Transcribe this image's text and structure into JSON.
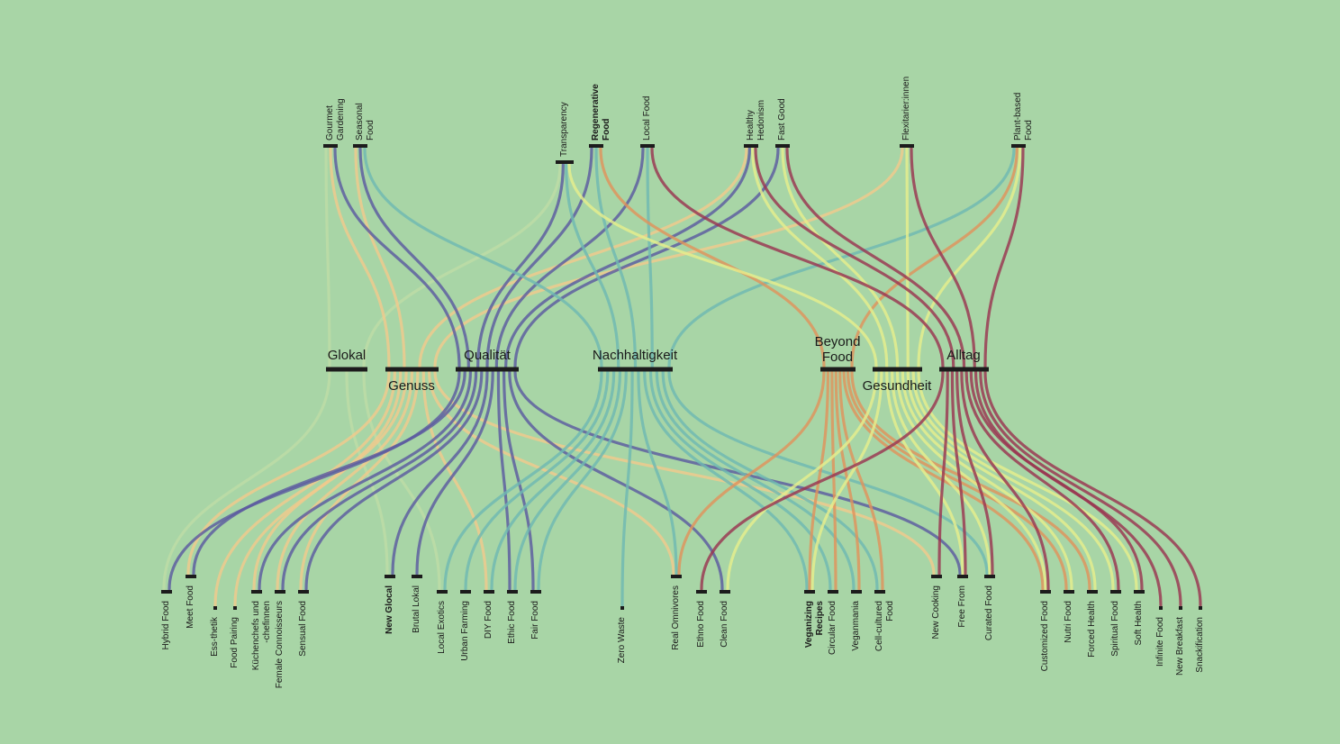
{
  "colors": {
    "background": "#a8d5a6",
    "purple": "#5b5aa0",
    "teal": "#6fb8b2",
    "yellow": "#e6ee8c",
    "orange": "#e0935c",
    "peach": "#f2c98c",
    "red": "#9a3550",
    "pale": "#c9e0a6",
    "node": "#1c1c1c"
  },
  "top_trends": [
    {
      "id": "gourmet",
      "label": "Gourmet\nGardening",
      "bold": false
    },
    {
      "id": "seasonal",
      "label": "Seasonal\nFood",
      "bold": false
    },
    {
      "id": "transparency",
      "label": "Transparency",
      "bold": false
    },
    {
      "id": "regenerative",
      "label": "Regenerative\nFood",
      "bold": true
    },
    {
      "id": "local",
      "label": "Local Food",
      "bold": false
    },
    {
      "id": "healthy",
      "label": "Healthy\nHedonism",
      "bold": false
    },
    {
      "id": "fastgood",
      "label": "Fast Good",
      "bold": false
    },
    {
      "id": "flexi",
      "label": "Flexitarier:innen",
      "bold": false
    },
    {
      "id": "plant",
      "label": "Plant-based\nFood",
      "bold": false
    }
  ],
  "categories": [
    {
      "id": "glokal",
      "label": "Glokal",
      "label_pos": "above"
    },
    {
      "id": "genuss",
      "label": "Genuss",
      "label_pos": "below"
    },
    {
      "id": "qualitaet",
      "label": "Qualität",
      "label_pos": "above"
    },
    {
      "id": "nachhaltigkeit",
      "label": "Nachhaltigkeit",
      "label_pos": "above"
    },
    {
      "id": "beyond",
      "label": "Beyond\nFood",
      "label_pos": "above"
    },
    {
      "id": "gesundheit",
      "label": "Gesundheit",
      "label_pos": "below"
    },
    {
      "id": "alltag",
      "label": "Alltag",
      "label_pos": "above"
    }
  ],
  "bottom_trends": [
    {
      "id": "hybrid",
      "label": "Hybrid Food",
      "bold": false
    },
    {
      "id": "meet",
      "label": "Meet Food",
      "bold": false
    },
    {
      "id": "essthetik",
      "label": "Ess-thetik",
      "bold": false
    },
    {
      "id": "pairing",
      "label": "Food Pairing",
      "bold": false
    },
    {
      "id": "kuechen",
      "label": "Küchenchefs und\n-chefinnen",
      "bold": false
    },
    {
      "id": "female",
      "label": "Female Connoisseurs",
      "bold": false
    },
    {
      "id": "sensual",
      "label": "Sensual Food",
      "bold": false
    },
    {
      "id": "newglocal",
      "label": "New Glocal",
      "bold": true
    },
    {
      "id": "brutal",
      "label": "Brutal Lokal",
      "bold": false
    },
    {
      "id": "exotics",
      "label": "Local Exotics",
      "bold": false
    },
    {
      "id": "urban",
      "label": "Urban Farming",
      "bold": false
    },
    {
      "id": "diy",
      "label": "DIY Food",
      "bold": false
    },
    {
      "id": "ethic",
      "label": "Ethic Food",
      "bold": false
    },
    {
      "id": "fair",
      "label": "Fair Food",
      "bold": false
    },
    {
      "id": "zerowaste",
      "label": "Zero Waste",
      "bold": false
    },
    {
      "id": "realomni",
      "label": "Real Omnivores",
      "bold": false
    },
    {
      "id": "ethno",
      "label": "Ethno Food",
      "bold": false
    },
    {
      "id": "clean",
      "label": "Clean Food",
      "bold": false
    },
    {
      "id": "veganizing",
      "label": "Veganizing\nRecipes",
      "bold": true
    },
    {
      "id": "circular",
      "label": "Circular Food",
      "bold": false
    },
    {
      "id": "vegan",
      "label": "Veganmania",
      "bold": false
    },
    {
      "id": "cellcult",
      "label": "Cell-cultured\nFood",
      "bold": false
    },
    {
      "id": "newcooking",
      "label": "New Cooking",
      "bold": false
    },
    {
      "id": "freefrom",
      "label": "Free From",
      "bold": false
    },
    {
      "id": "curated",
      "label": "Curated Food",
      "bold": false
    },
    {
      "id": "customized",
      "label": "Customized Food",
      "bold": false
    },
    {
      "id": "nutri",
      "label": "Nutri Food",
      "bold": false
    },
    {
      "id": "forced",
      "label": "Forced Health",
      "bold": false
    },
    {
      "id": "spiritual",
      "label": "Spiritual Food",
      "bold": false
    },
    {
      "id": "softhealth",
      "label": "Soft Health",
      "bold": false
    },
    {
      "id": "infinite",
      "label": "Infinite Food",
      "bold": false
    },
    {
      "id": "breakfast",
      "label": "New Breakfast",
      "bold": false
    },
    {
      "id": "snack",
      "label": "Snackification",
      "bold": false
    }
  ],
  "links_top": [
    {
      "from": "gourmet",
      "to": "qualitaet",
      "color": "purple"
    },
    {
      "from": "gourmet",
      "to": "genuss",
      "color": "peach"
    },
    {
      "from": "gourmet",
      "to": "glokal",
      "color": "pale"
    },
    {
      "from": "seasonal",
      "to": "nachhaltigkeit",
      "color": "teal"
    },
    {
      "from": "seasonal",
      "to": "genuss",
      "color": "peach"
    },
    {
      "from": "seasonal",
      "to": "qualitaet",
      "color": "purple"
    },
    {
      "from": "transparency",
      "to": "qualitaet",
      "color": "purple"
    },
    {
      "from": "transparency",
      "to": "nachhaltigkeit",
      "color": "teal"
    },
    {
      "from": "transparency",
      "to": "gesundheit",
      "color": "yellow"
    },
    {
      "from": "transparency",
      "to": "glokal",
      "color": "pale"
    },
    {
      "from": "regenerative",
      "to": "qualitaet",
      "color": "purple"
    },
    {
      "from": "regenerative",
      "to": "beyond",
      "color": "orange"
    },
    {
      "from": "regenerative",
      "to": "nachhaltigkeit",
      "color": "teal"
    },
    {
      "from": "local",
      "to": "qualitaet",
      "color": "purple"
    },
    {
      "from": "local",
      "to": "nachhaltigkeit",
      "color": "teal"
    },
    {
      "from": "local",
      "to": "alltag",
      "color": "red"
    },
    {
      "from": "healthy",
      "to": "genuss",
      "color": "peach"
    },
    {
      "from": "healthy",
      "to": "qualitaet",
      "color": "purple"
    },
    {
      "from": "healthy",
      "to": "gesundheit",
      "color": "yellow"
    },
    {
      "from": "healthy",
      "to": "alltag",
      "color": "red"
    },
    {
      "from": "fastgood",
      "to": "qualitaet",
      "color": "purple"
    },
    {
      "from": "fastgood",
      "to": "gesundheit",
      "color": "yellow"
    },
    {
      "from": "fastgood",
      "to": "alltag",
      "color": "red"
    },
    {
      "from": "flexi",
      "to": "genuss",
      "color": "peach"
    },
    {
      "from": "flexi",
      "to": "gesundheit",
      "color": "yellow"
    },
    {
      "from": "flexi",
      "to": "alltag",
      "color": "red"
    },
    {
      "from": "plant",
      "to": "nachhaltigkeit",
      "color": "teal"
    },
    {
      "from": "plant",
      "to": "beyond",
      "color": "orange"
    },
    {
      "from": "plant",
      "to": "gesundheit",
      "color": "yellow"
    },
    {
      "from": "plant",
      "to": "alltag",
      "color": "red"
    }
  ],
  "links_bottom": [
    {
      "from": "glokal",
      "to": "hybrid",
      "color": "pale"
    },
    {
      "from": "glokal",
      "to": "exotics",
      "color": "pale"
    },
    {
      "from": "glokal",
      "to": "newglocal",
      "color": "pale"
    },
    {
      "from": "genuss",
      "to": "essthetik",
      "color": "peach"
    },
    {
      "from": "genuss",
      "to": "pairing",
      "color": "peach"
    },
    {
      "from": "genuss",
      "to": "kuechen",
      "color": "peach"
    },
    {
      "from": "genuss",
      "to": "female",
      "color": "peach"
    },
    {
      "from": "genuss",
      "to": "sensual",
      "color": "peach"
    },
    {
      "from": "genuss",
      "to": "meet",
      "color": "peach"
    },
    {
      "from": "genuss",
      "to": "diy",
      "color": "peach"
    },
    {
      "from": "genuss",
      "to": "realomni",
      "color": "peach"
    },
    {
      "from": "genuss",
      "to": "newcooking",
      "color": "peach"
    },
    {
      "from": "qualitaet",
      "to": "hybrid",
      "color": "purple"
    },
    {
      "from": "qualitaet",
      "to": "meet",
      "color": "purple"
    },
    {
      "from": "qualitaet",
      "to": "kuechen",
      "color": "purple"
    },
    {
      "from": "qualitaet",
      "to": "female",
      "color": "purple"
    },
    {
      "from": "qualitaet",
      "to": "sensual",
      "color": "purple"
    },
    {
      "from": "qualitaet",
      "to": "newglocal",
      "color": "purple"
    },
    {
      "from": "qualitaet",
      "to": "brutal",
      "color": "purple"
    },
    {
      "from": "qualitaet",
      "to": "ethic",
      "color": "purple"
    },
    {
      "from": "qualitaet",
      "to": "fair",
      "color": "purple"
    },
    {
      "from": "qualitaet",
      "to": "clean",
      "color": "purple"
    },
    {
      "from": "qualitaet",
      "to": "freefrom",
      "color": "purple"
    },
    {
      "from": "nachhaltigkeit",
      "to": "exotics",
      "color": "teal"
    },
    {
      "from": "nachhaltigkeit",
      "to": "urban",
      "color": "teal"
    },
    {
      "from": "nachhaltigkeit",
      "to": "diy",
      "color": "teal"
    },
    {
      "from": "nachhaltigkeit",
      "to": "ethic",
      "color": "teal"
    },
    {
      "from": "nachhaltigkeit",
      "to": "fair",
      "color": "teal"
    },
    {
      "from": "nachhaltigkeit",
      "to": "zerowaste",
      "color": "teal"
    },
    {
      "from": "nachhaltigkeit",
      "to": "realomni",
      "color": "teal"
    },
    {
      "from": "nachhaltigkeit",
      "to": "veganizing",
      "color": "teal"
    },
    {
      "from": "nachhaltigkeit",
      "to": "circular",
      "color": "teal"
    },
    {
      "from": "nachhaltigkeit",
      "to": "vegan",
      "color": "teal"
    },
    {
      "from": "nachhaltigkeit",
      "to": "cellcult",
      "color": "teal"
    },
    {
      "from": "nachhaltigkeit",
      "to": "curated",
      "color": "teal"
    },
    {
      "from": "beyond",
      "to": "veganizing",
      "color": "orange"
    },
    {
      "from": "beyond",
      "to": "circular",
      "color": "orange"
    },
    {
      "from": "beyond",
      "to": "vegan",
      "color": "orange"
    },
    {
      "from": "beyond",
      "to": "cellcult",
      "color": "orange"
    },
    {
      "from": "beyond",
      "to": "realomni",
      "color": "orange"
    },
    {
      "from": "beyond",
      "to": "customized",
      "color": "orange"
    },
    {
      "from": "beyond",
      "to": "nutri",
      "color": "orange"
    },
    {
      "from": "beyond",
      "to": "forced",
      "color": "orange"
    },
    {
      "from": "gesundheit",
      "to": "clean",
      "color": "yellow"
    },
    {
      "from": "gesundheit",
      "to": "freefrom",
      "color": "yellow"
    },
    {
      "from": "gesundheit",
      "to": "customized",
      "color": "yellow"
    },
    {
      "from": "gesundheit",
      "to": "nutri",
      "color": "yellow"
    },
    {
      "from": "gesundheit",
      "to": "forced",
      "color": "yellow"
    },
    {
      "from": "gesundheit",
      "to": "spiritual",
      "color": "yellow"
    },
    {
      "from": "gesundheit",
      "to": "softhealth",
      "color": "yellow"
    },
    {
      "from": "gesundheit",
      "to": "veganizing",
      "color": "yellow"
    },
    {
      "from": "gesundheit",
      "to": "curated",
      "color": "yellow"
    },
    {
      "from": "alltag",
      "to": "ethno",
      "color": "red"
    },
    {
      "from": "alltag",
      "to": "newcooking",
      "color": "red"
    },
    {
      "from": "alltag",
      "to": "freefrom",
      "color": "red"
    },
    {
      "from": "alltag",
      "to": "curated",
      "color": "red"
    },
    {
      "from": "alltag",
      "to": "customized",
      "color": "red"
    },
    {
      "from": "alltag",
      "to": "spiritual",
      "color": "red"
    },
    {
      "from": "alltag",
      "to": "softhealth",
      "color": "red"
    },
    {
      "from": "alltag",
      "to": "infinite",
      "color": "red"
    },
    {
      "from": "alltag",
      "to": "breakfast",
      "color": "red"
    },
    {
      "from": "alltag",
      "to": "snack",
      "color": "red"
    }
  ]
}
